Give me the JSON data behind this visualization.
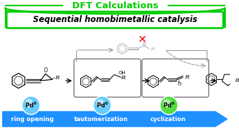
{
  "title": "DFT Calculations",
  "title_color": "#00CC00",
  "box_text": "Sequential homobimetallic catalysis",
  "box_text_color": "#000000",
  "box_bg": "#FFFFFF",
  "box_border_color": "#00CC00",
  "bg_color": "#FFFFFF",
  "arrow_blue": "#1E90FF",
  "arrow_labels": [
    "ring opening",
    "tautomerization",
    "cyclization"
  ],
  "pd0_color": "#66CCFF",
  "pdII_color": "#55DD44",
  "pd_label_color": "#000000",
  "gray": "#888888",
  "red_x": "#FF0000",
  "fig_width": 3.48,
  "fig_height": 1.89,
  "dpi": 100
}
